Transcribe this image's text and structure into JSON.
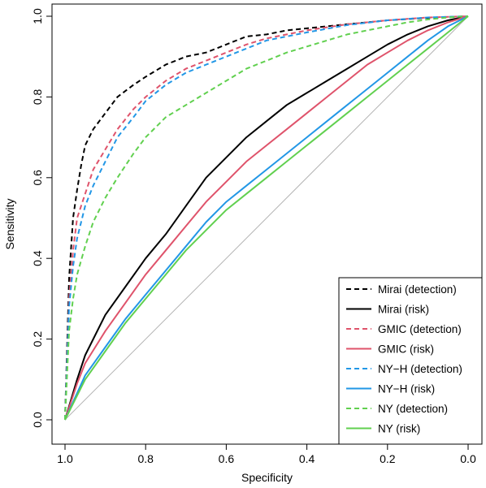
{
  "chart_data": {
    "type": "line",
    "xlabel": "Specificity",
    "ylabel": "Sensitivity",
    "xlim": [
      1.0,
      0.0
    ],
    "ylim": [
      0.0,
      1.0
    ],
    "x_reversed": true,
    "x_ticks": [
      1.0,
      0.8,
      0.6,
      0.4,
      0.2,
      0.0
    ],
    "x_tick_labels": [
      "1.0",
      "0.8",
      "0.6",
      "0.4",
      "0.2",
      "0.0"
    ],
    "y_ticks": [
      0.0,
      0.2,
      0.4,
      0.6,
      0.8,
      1.0
    ],
    "y_tick_labels": [
      "0.0",
      "0.2",
      "0.4",
      "0.6",
      "0.8",
      "1.0"
    ],
    "grid": false,
    "legend_position": "bottom-right",
    "reference_line": {
      "from": [
        1.0,
        0.0
      ],
      "to": [
        0.0,
        1.0
      ],
      "color": "#b3b3b3"
    },
    "series": [
      {
        "name": "Mirai (detection)",
        "color": "#000000",
        "dash": true,
        "x": [
          1.0,
          0.99,
          0.98,
          0.97,
          0.96,
          0.95,
          0.93,
          0.9,
          0.87,
          0.83,
          0.8,
          0.75,
          0.7,
          0.65,
          0.6,
          0.55,
          0.5,
          0.45,
          0.4,
          0.35,
          0.3,
          0.25,
          0.2,
          0.15,
          0.1,
          0.05,
          0.0
        ],
        "y": [
          0.0,
          0.35,
          0.5,
          0.57,
          0.63,
          0.68,
          0.72,
          0.76,
          0.8,
          0.83,
          0.85,
          0.88,
          0.9,
          0.91,
          0.93,
          0.95,
          0.955,
          0.965,
          0.97,
          0.975,
          0.98,
          0.985,
          0.99,
          0.993,
          0.996,
          0.998,
          1.0
        ]
      },
      {
        "name": "Mirai (risk)",
        "color": "#000000",
        "dash": false,
        "x": [
          1.0,
          0.97,
          0.95,
          0.9,
          0.85,
          0.8,
          0.75,
          0.7,
          0.65,
          0.6,
          0.55,
          0.5,
          0.45,
          0.4,
          0.35,
          0.3,
          0.25,
          0.2,
          0.15,
          0.1,
          0.05,
          0.0
        ],
        "y": [
          0.0,
          0.1,
          0.16,
          0.26,
          0.33,
          0.4,
          0.46,
          0.53,
          0.6,
          0.65,
          0.7,
          0.74,
          0.78,
          0.81,
          0.84,
          0.87,
          0.9,
          0.93,
          0.955,
          0.975,
          0.99,
          1.0
        ]
      },
      {
        "name": "GMIC (detection)",
        "color": "#df536b",
        "dash": true,
        "x": [
          1.0,
          0.99,
          0.98,
          0.97,
          0.95,
          0.93,
          0.9,
          0.87,
          0.83,
          0.8,
          0.75,
          0.7,
          0.65,
          0.6,
          0.55,
          0.5,
          0.45,
          0.4,
          0.3,
          0.2,
          0.1,
          0.0
        ],
        "y": [
          0.0,
          0.3,
          0.42,
          0.5,
          0.56,
          0.62,
          0.67,
          0.72,
          0.77,
          0.8,
          0.84,
          0.87,
          0.89,
          0.91,
          0.93,
          0.945,
          0.955,
          0.965,
          0.98,
          0.99,
          0.997,
          1.0
        ]
      },
      {
        "name": "GMIC (risk)",
        "color": "#df536b",
        "dash": false,
        "x": [
          1.0,
          0.97,
          0.95,
          0.9,
          0.85,
          0.8,
          0.75,
          0.7,
          0.65,
          0.6,
          0.55,
          0.5,
          0.45,
          0.4,
          0.35,
          0.3,
          0.25,
          0.2,
          0.15,
          0.1,
          0.05,
          0.0
        ],
        "y": [
          0.0,
          0.09,
          0.14,
          0.22,
          0.29,
          0.36,
          0.42,
          0.48,
          0.54,
          0.59,
          0.64,
          0.68,
          0.72,
          0.76,
          0.8,
          0.84,
          0.88,
          0.91,
          0.94,
          0.965,
          0.985,
          1.0
        ]
      },
      {
        "name": "NY−H (detection)",
        "color": "#2297e6",
        "dash": true,
        "x": [
          1.0,
          0.99,
          0.98,
          0.97,
          0.95,
          0.93,
          0.9,
          0.87,
          0.83,
          0.8,
          0.75,
          0.7,
          0.65,
          0.6,
          0.55,
          0.5,
          0.45,
          0.4,
          0.3,
          0.2,
          0.1,
          0.0
        ],
        "y": [
          0.0,
          0.28,
          0.38,
          0.45,
          0.53,
          0.58,
          0.64,
          0.7,
          0.75,
          0.79,
          0.83,
          0.86,
          0.88,
          0.9,
          0.92,
          0.94,
          0.95,
          0.96,
          0.978,
          0.99,
          0.997,
          1.0
        ]
      },
      {
        "name": "NY−H (risk)",
        "color": "#2297e6",
        "dash": false,
        "x": [
          1.0,
          0.95,
          0.9,
          0.85,
          0.8,
          0.75,
          0.7,
          0.65,
          0.6,
          0.55,
          0.5,
          0.45,
          0.4,
          0.35,
          0.3,
          0.25,
          0.2,
          0.15,
          0.1,
          0.05,
          0.0
        ],
        "y": [
          0.0,
          0.11,
          0.18,
          0.25,
          0.31,
          0.37,
          0.43,
          0.49,
          0.54,
          0.58,
          0.62,
          0.66,
          0.7,
          0.74,
          0.78,
          0.82,
          0.86,
          0.9,
          0.94,
          0.975,
          1.0
        ]
      },
      {
        "name": "NY (detection)",
        "color": "#61d04f",
        "dash": true,
        "x": [
          1.0,
          0.99,
          0.98,
          0.97,
          0.95,
          0.93,
          0.9,
          0.87,
          0.83,
          0.8,
          0.75,
          0.7,
          0.65,
          0.6,
          0.55,
          0.5,
          0.45,
          0.4,
          0.35,
          0.3,
          0.25,
          0.2,
          0.15,
          0.1,
          0.05,
          0.0
        ],
        "y": [
          0.0,
          0.22,
          0.3,
          0.36,
          0.43,
          0.49,
          0.55,
          0.6,
          0.66,
          0.7,
          0.75,
          0.78,
          0.81,
          0.84,
          0.87,
          0.89,
          0.91,
          0.925,
          0.94,
          0.955,
          0.965,
          0.975,
          0.985,
          0.992,
          0.997,
          1.0
        ]
      },
      {
        "name": "NY (risk)",
        "color": "#61d04f",
        "dash": false,
        "x": [
          1.0,
          0.95,
          0.9,
          0.85,
          0.8,
          0.75,
          0.7,
          0.65,
          0.6,
          0.55,
          0.5,
          0.45,
          0.4,
          0.35,
          0.3,
          0.25,
          0.2,
          0.15,
          0.1,
          0.05,
          0.0
        ],
        "y": [
          0.0,
          0.1,
          0.17,
          0.24,
          0.3,
          0.36,
          0.42,
          0.47,
          0.52,
          0.56,
          0.6,
          0.64,
          0.68,
          0.72,
          0.76,
          0.8,
          0.84,
          0.88,
          0.92,
          0.96,
          1.0
        ]
      }
    ]
  }
}
